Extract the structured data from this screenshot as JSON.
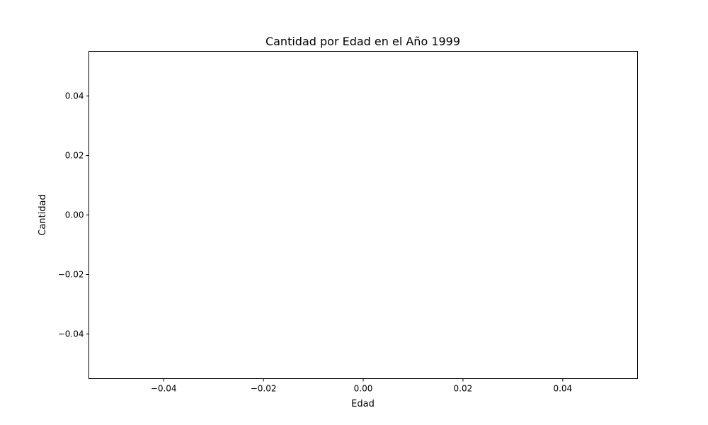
{
  "chart_data": {
    "type": "scatter",
    "title": "Cantidad por Edad en el Año 1999",
    "xlabel": "Edad",
    "ylabel": "Cantidad",
    "xlim": [
      -0.055,
      0.055
    ],
    "ylim": [
      -0.055,
      0.055
    ],
    "xticks": [
      -0.04,
      -0.02,
      0.0,
      0.02,
      0.04
    ],
    "xtick_labels": [
      "−0.04",
      "−0.02",
      "0.00",
      "0.02",
      "0.04"
    ],
    "yticks": [
      -0.04,
      -0.02,
      0.0,
      0.02,
      0.04
    ],
    "ytick_labels": [
      "−0.04",
      "−0.02",
      "0.00",
      "0.02",
      "0.04"
    ],
    "grid": false,
    "series": [
      {
        "x": [],
        "y": []
      }
    ]
  }
}
